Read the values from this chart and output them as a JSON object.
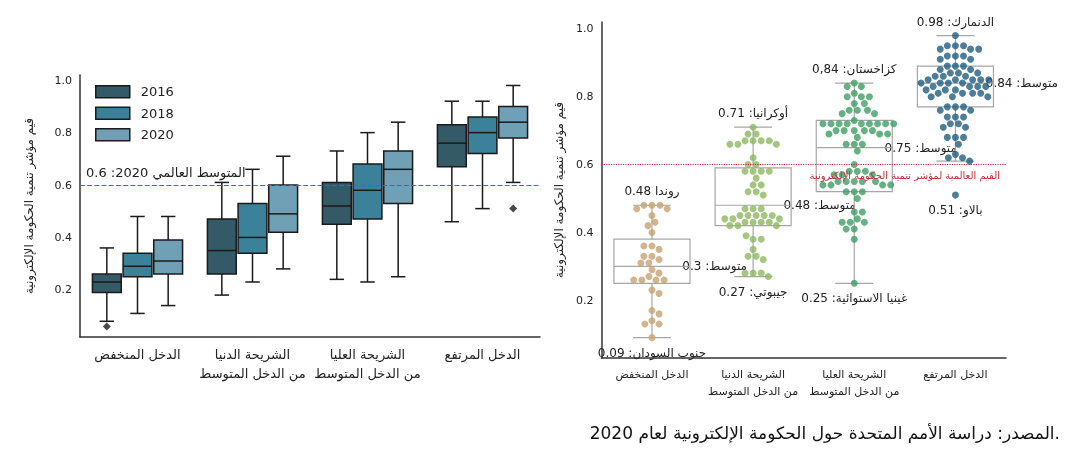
{
  "chart_data": [
    {
      "type": "box",
      "ylabel": "قيم مؤشر تنمية الحكومة الإلكترونية",
      "categories": [
        "الدخل المنخفض",
        "الشريحة الدنيا\nمن الدخل المتوسط",
        "الشريحة العليا\nمن الدخل المتوسط",
        "الدخل المرتفع"
      ],
      "ylim": [
        0.02,
        1.02
      ],
      "yticks": [
        0.2,
        0.4,
        0.6,
        0.8,
        {
          "value": 1,
          "label": "1.0"
        }
      ],
      "legend": "top left",
      "series": [
        {
          "name": "2016",
          "color": "#335a66",
          "boxes": [
            {
              "low": 0.08,
              "q1": 0.19,
              "median": 0.23,
              "q3": 0.26,
              "high": 0.36,
              "outliers": [
                0.06
              ]
            },
            {
              "low": 0.18,
              "q1": 0.26,
              "median": 0.35,
              "q3": 0.47,
              "high": 0.61
            },
            {
              "low": 0.24,
              "q1": 0.45,
              "median": 0.52,
              "q3": 0.61,
              "high": 0.73
            },
            {
              "low": 0.46,
              "q1": 0.67,
              "median": 0.76,
              "q3": 0.83,
              "high": 0.92
            }
          ]
        },
        {
          "name": "2018",
          "color": "#3a8199",
          "boxes": [
            {
              "low": 0.11,
              "q1": 0.25,
              "median": 0.29,
              "q3": 0.34,
              "high": 0.48
            },
            {
              "low": 0.23,
              "q1": 0.34,
              "median": 0.4,
              "q3": 0.53,
              "high": 0.66
            },
            {
              "low": 0.23,
              "q1": 0.47,
              "median": 0.58,
              "q3": 0.68,
              "high": 0.8
            },
            {
              "low": 0.51,
              "q1": 0.72,
              "median": 0.8,
              "q3": 0.86,
              "high": 0.92
            }
          ]
        },
        {
          "name": "2020",
          "color": "#6fa0b5",
          "boxes": [
            {
              "low": 0.14,
              "q1": 0.26,
              "median": 0.31,
              "q3": 0.39,
              "high": 0.48
            },
            {
              "low": 0.28,
              "q1": 0.42,
              "median": 0.49,
              "q3": 0.6,
              "high": 0.71
            },
            {
              "low": 0.25,
              "q1": 0.53,
              "median": 0.66,
              "q3": 0.73,
              "high": 0.84
            },
            {
              "low": 0.61,
              "q1": 0.78,
              "median": 0.84,
              "q3": 0.9,
              "high": 0.98,
              "outliers": [
                0.51
              ]
            }
          ]
        }
      ],
      "ref_lines": [
        {
          "axis": "y",
          "value": 0.6,
          "label": "المتوسط العالمي 2020: 0.6",
          "color": "#e03030",
          "line_style": "dashed"
        }
      ]
    },
    {
      "type": "box",
      "ylabel": "قيم مؤشر تنمية الحكومة الإلكترونية",
      "categories": [
        "الدخل المنخفض",
        "الشريحة الدنيا\nمن الدخل المتوسط",
        "الشريحة العليا\nمن الدخل المتوسط",
        "الدخل المرتفع"
      ],
      "ylim": [
        0.03,
        1.02
      ],
      "yticks": [
        0.2,
        0.4,
        0.6,
        0.8,
        {
          "value": 1,
          "label": "1.0"
        }
      ],
      "series": [
        {
          "color": "#a6a6a6",
          "boxes": [
            {
              "low": 0.09,
              "q1": 0.25,
              "median": 0.3,
              "q3": 0.38,
              "high": 0.48
            },
            {
              "low": 0.27,
              "q1": 0.42,
              "median": 0.48,
              "q3": 0.59,
              "high": 0.71
            },
            {
              "low": 0.25,
              "q1": 0.52,
              "median": 0.65,
              "q3": 0.73,
              "high": 0.84
            },
            {
              "low": 0.61,
              "q1": 0.77,
              "median": 0.84,
              "q3": 0.89,
              "high": 0.98
            }
          ]
        },
        {
          "type": "scatter",
          "color": "#c4a373",
          "x": [
            "الدخل المنخفض",
            "الدخل المنخفض",
            "الدخل المنخفض",
            "الدخل المنخفض",
            "الدخل المنخفض",
            "الدخل المنخفض",
            "الدخل المنخفض",
            "الدخل المنخفض",
            "الدخل المنخفض",
            "الدخل المنخفض",
            "الدخل المنخفض",
            "الدخل المنخفض",
            "الدخل المنخفض",
            "الدخل المنخفض",
            "الدخل المنخفض",
            "الدخل المنخفض",
            "الدخل المنخفض",
            "الدخل المنخفض",
            "الدخل المنخفض",
            "الدخل المنخفض",
            "الدخل المنخفض",
            "الدخل المنخفض",
            "الدخل المنخفض",
            "الدخل المنخفض",
            "الدخل المنخفض",
            "الدخل المنخفض",
            "الدخل المنخفض",
            "الدخل المنخفض",
            "الدخل المنخفض",
            "الدخل المنخفض",
            "الدخل المنخفض",
            "الدخل المنخفض"
          ],
          "values": [
            0.48,
            0.48,
            0.48,
            0.47,
            0.47,
            0.45,
            0.43,
            0.42,
            0.4,
            0.36,
            0.35,
            0.36,
            0.33,
            0.32,
            0.33,
            0.31,
            0.31,
            0.29,
            0.28,
            0.27,
            0.26,
            0.26,
            0.26,
            0.26,
            0.23,
            0.22,
            0.17,
            0.16,
            0.14,
            0.13,
            0.13,
            0.09
          ]
        },
        {
          "type": "scatter",
          "color": "#8fb862",
          "x": [
            "الشريحة الدنيا\nمن الدخل المتوسط",
            "الشريحة الدنيا\nمن الدخل المتوسط",
            "الشريحة الدنيا\nمن الدخل المتوسط",
            "الشريحة الدنيا\nمن الدخل المتوسط",
            "الشريحة الدنيا\nمن الدخل المتوسط",
            "الشريحة الدنيا\nمن الدخل المتوسط",
            "الشريحة الدنيا\nمن الدخل المتوسط",
            "الشريحة الدنيا\nمن الدخل المتوسط",
            "الشريحة الدنيا\nمن الدخل المتوسط",
            "الشريحة الدنيا\nمن الدخل المتوسط",
            "الشريحة الدنيا\nمن الدخل المتوسط",
            "الشريحة الدنيا\nمن الدخل المتوسط",
            "الشريحة الدنيا\nمن الدخل المتوسط",
            "الشريحة الدنيا\nمن الدخل المتوسط",
            "الشريحة الدنيا\nمن الدخل المتوسط",
            "الشريحة الدنيا\nمن الدخل المتوسط",
            "الشريحة الدنيا\nمن الدخل المتوسط",
            "الشريحة الدنيا\nمن الدخل المتوسط",
            "الشريحة الدنيا\nمن الدخل المتوسط",
            "الشريحة الدنيا\nمن الدخل المتوسط",
            "الشريحة الدنيا\nمن الدخل المتوسط",
            "الشريحة الدنيا\nمن الدخل المتوسط",
            "الشريحة الدنيا\nمن الدخل المتوسط",
            "الشريحة الدنيا\nمن الدخل المتوسط",
            "الشريحة الدنيا\nمن الدخل المتوسط",
            "الشريحة الدنيا\nمن الدخل المتوسط",
            "الشريحة الدنيا\nمن الدخل المتوسط",
            "الشريحة الدنيا\nمن الدخل المتوسط",
            "الشريحة الدنيا\nمن الدخل المتوسط",
            "الشريحة الدنيا\nمن الدخل المتوسط",
            "الشريحة الدنيا\nمن الدخل المتوسط",
            "الشريحة الدنيا\nمن الدخل المتوسط",
            "الشريحة الدنيا\nمن الدخل المتوسط",
            "الشريحة الدنيا\nمن الدخل المتوسط",
            "الشريحة الدنيا\nمن الدخل المتوسط",
            "الشريحة الدنيا\nمن الدخل المتوسط",
            "الشريحة الدنيا\nمن الدخل المتوسط",
            "الشريحة الدنيا\nمن الدخل المتوسط",
            "الشريحة الدنيا\nمن الدخل المتوسط",
            "الشريحة الدنيا\nمن الدخل المتوسط",
            "الشريحة الدنيا\nمن الدخل المتوسط",
            "الشريحة الدنيا\nمن الدخل المتوسط",
            "الشريحة الدنيا\nمن الدخل المتوسط",
            "الشريحة الدنيا\nمن الدخل المتوسط",
            "الشريحة الدنيا\nمن الدخل المتوسط",
            "الشريحة الدنيا\nمن الدخل المتوسط",
            "الشريحة الدنيا\nمن الدخل المتوسط",
            "الشريحة الدنيا\nمن الدخل المتوسط",
            "الشريحة الدنيا\nمن الدخل المتوسط",
            "الشريحة الدنيا\nمن الدخل المتوسط",
            "الشريحة الدنيا\nمن الدخل المتوسط",
            "الشريحة الدنيا\nمن الدخل المتوسط"
          ],
          "values": [
            0.71,
            0.69,
            0.69,
            0.67,
            0.67,
            0.67,
            0.67,
            0.66,
            0.66,
            0.66,
            0.62,
            0.6,
            0.6,
            0.58,
            0.58,
            0.58,
            0.58,
            0.56,
            0.54,
            0.54,
            0.52,
            0.52,
            0.51,
            0.47,
            0.47,
            0.47,
            0.45,
            0.45,
            0.45,
            0.45,
            0.45,
            0.44,
            0.44,
            0.44,
            0.43,
            0.43,
            0.43,
            0.43,
            0.42,
            0.42,
            0.42,
            0.38,
            0.38,
            0.39,
            0.35,
            0.33,
            0.33,
            0.32,
            0.28,
            0.28,
            0.28,
            0.27
          ]
        },
        {
          "type": "scatter",
          "color": "#3e9e64",
          "x": [
            "الشريحة العليا\nمن الدخل المتوسط",
            "الشريحة العليا\nمن الدخل المتوسط",
            "الشريحة العليا\nمن الدخل المتوسط",
            "الشريحة العليا\nمن الدخل المتوسط",
            "الشريحة العليا\nمن الدخل المتوسط",
            "الشريحة العليا\nمن الدخل المتوسط",
            "الشريحة العليا\nمن الدخل المتوسط",
            "الشريحة العليا\nمن الدخل المتوسط",
            "الشريحة العليا\nمن الدخل المتوسط",
            "الشريحة العليا\nمن الدخل المتوسط",
            "الشريحة العليا\nمن الدخل المتوسط",
            "الشريحة العليا\nمن الدخل المتوسط",
            "الشريحة العليا\nمن الدخل المتوسط",
            "الشريحة العليا\nمن الدخل المتوسط",
            "الشريحة العليا\nمن الدخل المتوسط",
            "الشريحة العليا\nمن الدخل المتوسط",
            "الشريحة العليا\nمن الدخل المتوسط",
            "الشريحة العليا\nمن الدخل المتوسط",
            "الشريحة العليا\nمن الدخل المتوسط",
            "الشريحة العليا\nمن الدخل المتوسط",
            "الشريحة العليا\nمن الدخل المتوسط",
            "الشريحة العليا\nمن الدخل المتوسط",
            "الشريحة العليا\nمن الدخل المتوسط",
            "الشريحة العليا\nمن الدخل المتوسط",
            "الشريحة العليا\nمن الدخل المتوسط",
            "الشريحة العليا\nمن الدخل المتوسط",
            "الشريحة العليا\nمن الدخل المتوسط",
            "الشريحة العليا\nمن الدخل المتوسط",
            "الشريحة العليا\nمن الدخل المتوسط",
            "الشريحة العليا\nمن الدخل المتوسط",
            "الشريحة العليا\nمن الدخل المتوسط",
            "الشريحة العليا\nمن الدخل المتوسط",
            "الشريحة العليا\nمن الدخل المتوسط",
            "الشريحة العليا\nمن الدخل المتوسط",
            "الشريحة العليا\nمن الدخل المتوسط",
            "الشريحة العليا\nمن الدخل المتوسط",
            "الشريحة العليا\nمن الدخل المتوسط",
            "الشريحة العليا\nمن الدخل المتوسط",
            "الشريحة العليا\nمن الدخل المتوسط",
            "الشريحة العليا\nمن الدخل المتوسط",
            "الشريحة العليا\nمن الدخل المتوسط",
            "الشريحة العليا\nمن الدخل المتوسط",
            "الشريحة العليا\nمن الدخل المتوسط",
            "الشريحة العليا\nمن الدخل المتوسط",
            "الشريحة العليا\nمن الدخل المتوسط",
            "الشريحة العليا\nمن الدخل المتوسط",
            "الشريحة العليا\nمن الدخل المتوسط",
            "الشريحة العليا\nمن الدخل المتوسط",
            "الشريحة العليا\nمن الدخل المتوسط",
            "الشريحة العليا\nمن الدخل المتوسط",
            "الشريحة العليا\nمن الدخل المتوسط",
            "الشريحة العليا\nمن الدخل المتوسط",
            "الشريحة العليا\nمن الدخل المتوسط",
            "الشريحة العليا\nمن الدخل المتوسط",
            "الشريحة العليا\nمن الدخل المتوسط",
            "الشريحة العليا\nمن الدخل المتوسط",
            "الشريحة العليا\nمن الدخل المتوسط",
            "الشريحة العليا\nمن الدخل المتوسط",
            "الشريحة العليا\nمن الدخل المتوسط",
            "الشريحة العليا\nمن الدخل المتوسط",
            "الشريحة العليا\nمن الدخل المتوسط",
            "الشريحة العليا\nمن الدخل المتوسط",
            "الشريحة العليا\nمن الدخل المتوسط",
            "الشريحة العليا\nمن الدخل المتوسط",
            "الشريحة العليا\nمن الدخل المتوسط",
            "الشريحة العليا\nمن الدخل المتوسط",
            "الشريحة العليا\nمن الدخل المتوسط"
          ],
          "values": [
            0.84,
            0.83,
            0.83,
            0.81,
            0.8,
            0.8,
            0.8,
            0.78,
            0.78,
            0.76,
            0.76,
            0.76,
            0.75,
            0.75,
            0.73,
            0.72,
            0.72,
            0.72,
            0.72,
            0.72,
            0.72,
            0.72,
            0.72,
            0.72,
            0.7,
            0.7,
            0.7,
            0.7,
            0.7,
            0.69,
            0.69,
            0.69,
            0.68,
            0.66,
            0.66,
            0.66,
            0.64,
            0.6,
            0.58,
            0.58,
            0.58,
            0.57,
            0.57,
            0.57,
            0.55,
            0.55,
            0.55,
            0.55,
            0.55,
            0.54,
            0.54,
            0.54,
            0.54,
            0.52,
            0.52,
            0.52,
            0.5,
            0.46,
            0.46,
            0.44,
            0.43,
            0.43,
            0.43,
            0.41,
            0.41,
            0.38,
            0.25
          ]
        },
        {
          "type": "scatter",
          "color": "#1f5e80",
          "x": [
            "الدخل المرتفع",
            "الدخل المرتفع",
            "الدخل المرتفع",
            "الدخل المرتفع",
            "الدخل المرتفع",
            "الدخل المرتفع",
            "الدخل المرتفع",
            "الدخل المرتفع",
            "الدخل المرتفع",
            "الدخل المرتفع",
            "الدخل المرتفع",
            "الدخل المرتفع",
            "الدخل المرتفع",
            "الدخل المرتفع",
            "الدخل المرتفع",
            "الدخل المرتفع",
            "الدخل المرتفع",
            "الدخل المرتفع",
            "الدخل المرتفع",
            "الدخل المرتفع",
            "الدخل المرتفع",
            "الدخل المرتفع",
            "الدخل المرتفع",
            "الدخل المرتفع",
            "الدخل المرتفع",
            "الدخل المرتفع",
            "الدخل المرتفع",
            "الدخل المرتفع",
            "الدخل المرتفع",
            "الدخل المرتفع",
            "الدخل المرتفع",
            "الدخل المرتفع",
            "الدخل المرتفع",
            "الدخل المرتفع",
            "الدخل المرتفع",
            "الدخل المرتفع",
            "الدخل المرتفع",
            "الدخل المرتفع",
            "الدخل المرتفع",
            "الدخل المرتفع",
            "الدخل المرتفع",
            "الدخل المرتفع",
            "الدخل المرتفع",
            "الدخل المرتفع",
            "الدخل المرتفع",
            "الدخل المرتفع",
            "الدخل المرتفع",
            "الدخل المرتفع",
            "الدخل المرتفع",
            "الدخل المرتفع",
            "الدخل المرتفع",
            "الدخل المرتفع",
            "الدخل المرتفع",
            "الدخل المرتفع",
            "الدخل المرتفع",
            "الدخل المرتفع",
            "الدخل المرتفع",
            "الدخل المرتفع",
            "الدخل المرتفع",
            "الدخل المرتفع",
            "الدخل المرتفع",
            "الدخل المرتفع",
            "الدخل المرتفع",
            "الدخل المرتفع",
            "الدخل المرتفع",
            "الدخل المرتفع",
            "الدخل المرتفع"
          ],
          "values": [
            0.98,
            0.95,
            0.95,
            0.95,
            0.94,
            0.94,
            0.94,
            0.92,
            0.92,
            0.92,
            0.91,
            0.91,
            0.89,
            0.89,
            0.89,
            0.88,
            0.88,
            0.87,
            0.87,
            0.87,
            0.86,
            0.86,
            0.86,
            0.85,
            0.85,
            0.85,
            0.85,
            0.85,
            0.84,
            0.84,
            0.84,
            0.84,
            0.83,
            0.83,
            0.83,
            0.83,
            0.82,
            0.82,
            0.82,
            0.81,
            0.81,
            0.81,
            0.81,
            0.8,
            0.8,
            0.8,
            0.77,
            0.77,
            0.77,
            0.76,
            0.76,
            0.74,
            0.74,
            0.74,
            0.72,
            0.72,
            0.71,
            0.71,
            0.68,
            0.68,
            0.68,
            0.66,
            0.63,
            0.62,
            0.62,
            0.61,
            0.51
          ]
        }
      ],
      "ref_lines": [
        {
          "axis": "y",
          "value": 0.6,
          "label": "القيم العالمية لمؤشر تنمية الحكومة الإلكترونية",
          "color": "#c0303a",
          "line_style": "dotted"
        }
      ],
      "annotations": [
        {
          "text": "روندا 0.48",
          "x": "الدخل المنخفض",
          "y": 0.48
        },
        {
          "text": "متوسط: 0.3",
          "x": "الدخل المنخفض",
          "y": 0.3
        },
        {
          "text": "جنوب السودان: 0.09",
          "x": "الدخل المنخفض",
          "y": 0.09
        },
        {
          "text": "أوكرانيا: 0.71",
          "x": "الشريحة الدنيا\nمن الدخل المتوسط",
          "y": 0.71
        },
        {
          "text": "متوسط: 0.48",
          "x": "الشريحة الدنيا\nمن الدخل المتوسط",
          "y": 0.48
        },
        {
          "text": "جيبوتي: 0.27",
          "x": "الشريحة الدنيا\nمن الدخل المتوسط",
          "y": 0.27
        },
        {
          "text": "كزاخستان: 0,84",
          "x": "الشريحة العليا\nمن الدخل المتوسط",
          "y": 0.84
        },
        {
          "text": "متوسط: 0.75",
          "x": "الشريحة العليا\nمن الدخل المتوسط",
          "y": 0.65
        },
        {
          "text": "غينيا الاستوائية: 0.25",
          "x": "الشريحة العليا\nمن الدخل المتوسط",
          "y": 0.25
        },
        {
          "text": "الدنمارك: 0.98",
          "x": "الدخل المرتفع",
          "y": 0.98
        },
        {
          "text": "متوسط: 0.84",
          "x": "الدخل المرتفع",
          "y": 0.84
        },
        {
          "text": "بالاو: 0.51",
          "x": "الدخل المرتفع",
          "y": 0.51
        },
        "المصدر: دراسة الأمم المتحدة حول الحكومة الإلكترونية لعام 2020."
      ]
    }
  ]
}
